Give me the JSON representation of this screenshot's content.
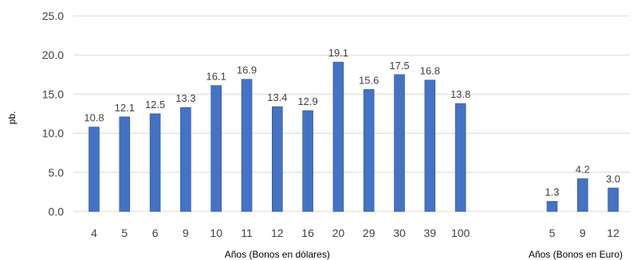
{
  "chart_data": {
    "type": "bar",
    "title": "",
    "ylabel": "pb.",
    "ylim": [
      0,
      25
    ],
    "yticks": [
      "0.0",
      "5.0",
      "10.0",
      "15.0",
      "20.0",
      "25.0"
    ],
    "grid": true,
    "legend": "none",
    "bar_color": "#4472C4",
    "groups": [
      {
        "xlabel": "Años (Bonos en dólares)",
        "categories": [
          "4",
          "5",
          "6",
          "9",
          "10",
          "11",
          "12",
          "16",
          "20",
          "29",
          "30",
          "39",
          "100"
        ],
        "values": [
          10.8,
          12.1,
          12.5,
          13.3,
          16.1,
          16.9,
          13.4,
          12.9,
          19.1,
          15.6,
          17.5,
          16.8,
          13.8
        ],
        "labels": [
          "10.8",
          "12.1",
          "12.5",
          "13.3",
          "16.1",
          "16.9",
          "13.4",
          "12.9",
          "19.1",
          "15.6",
          "17.5",
          "16.8",
          "13.8"
        ]
      },
      {
        "xlabel": "Años (Bonos en Euro)",
        "categories": [
          "5",
          "9",
          "12"
        ],
        "values": [
          1.3,
          4.2,
          3.0
        ],
        "labels": [
          "1.3",
          "4.2",
          "3.0"
        ]
      }
    ]
  }
}
